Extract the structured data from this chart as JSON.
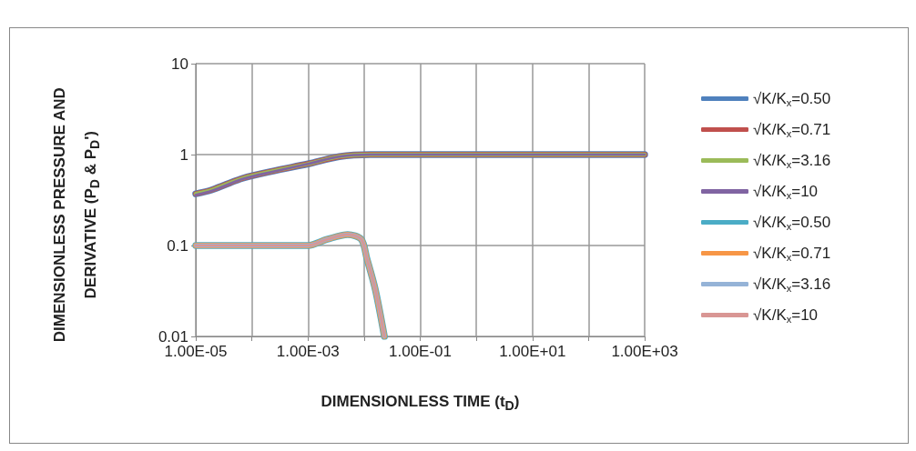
{
  "chart_data": {
    "type": "line",
    "xlabel": "DIMENSIONLESS TIME (t$_{D}$)",
    "ylabel": "DIMENSIONLESS PRESSURE AND DERIVATIVE (P$_{D}$ & P$_{D}$')",
    "log": "xy",
    "grid": true,
    "legend": "right",
    "marker": "none",
    "line_style": "solid",
    "xlim": [
      1e-05,
      1000
    ],
    "xticks": [
      {
        "value": 1e-05,
        "label": "1.00E-05"
      },
      {
        "value": 0.0001,
        "label": null
      },
      {
        "value": 0.001,
        "label": "1.00E-03"
      },
      {
        "value": 0.01,
        "label": null
      },
      {
        "value": 0.1,
        "label": "1.00E-01"
      },
      {
        "value": 1,
        "label": null
      },
      {
        "value": 10,
        "label": "1.00E+01"
      },
      {
        "value": 100,
        "label": null
      },
      {
        "value": 1000,
        "label": "1.00E+03"
      }
    ],
    "ylim": [
      0.01,
      10
    ],
    "yticks": [
      0.01,
      0.1,
      1,
      10
    ],
    "series": [
      {
        "name": "√K/K$_{x}$=0.50",
        "color": "#4f81bd",
        "x": [
          1e-05,
          1.95e-05,
          6.9e-05,
          0.00024,
          0.001,
          0.0036,
          0.013,
          1000
        ],
        "values": [
          0.37,
          0.41,
          0.55,
          0.66,
          0.79,
          0.95,
          1.0,
          1.0
        ]
      },
      {
        "name": "√K/K$_{x}$=0.71",
        "color": "#c0504d",
        "x": [
          1e-05,
          1.95e-05,
          6.9e-05,
          0.00024,
          0.001,
          0.0036,
          0.013,
          1000
        ],
        "values": [
          0.37,
          0.41,
          0.55,
          0.66,
          0.79,
          0.95,
          1.0,
          1.0
        ]
      },
      {
        "name": "√K/K$_{x}$=3.16",
        "color": "#9bbb59",
        "x": [
          1e-05,
          1.95e-05,
          6.9e-05,
          0.00024,
          0.001,
          0.0036,
          0.013,
          1000
        ],
        "values": [
          0.37,
          0.41,
          0.55,
          0.66,
          0.79,
          0.95,
          1.0,
          1.0
        ]
      },
      {
        "name": "√K/K$_{x}$=10",
        "color": "#8064a2",
        "x": [
          1e-05,
          1.95e-05,
          6.9e-05,
          0.00024,
          0.001,
          0.0036,
          0.013,
          1000
        ],
        "values": [
          0.36,
          0.4,
          0.54,
          0.65,
          0.79,
          0.95,
          1.0,
          1.0
        ]
      },
      {
        "name": "√K/K$_{x}$=0.50",
        "color": "#4bacc6",
        "x": [
          1e-05,
          0.001,
          0.0022,
          0.0051,
          0.0089,
          0.0112,
          0.0158,
          0.023
        ],
        "values": [
          0.1,
          0.1,
          0.117,
          0.132,
          0.117,
          0.072,
          0.033,
          0.01
        ]
      },
      {
        "name": "√K/K$_{x}$=0.71",
        "color": "#f79646",
        "x": [
          1e-05,
          0.001,
          0.0022,
          0.0051,
          0.0089,
          0.0112,
          0.0158,
          0.023
        ],
        "values": [
          0.1,
          0.1,
          0.117,
          0.132,
          0.117,
          0.072,
          0.033,
          0.01
        ]
      },
      {
        "name": "√K/K$_{x}$=3.16",
        "color": "#95b3d7",
        "x": [
          1e-05,
          0.001,
          0.0022,
          0.0051,
          0.0089,
          0.0112,
          0.0158,
          0.023
        ],
        "values": [
          0.1,
          0.1,
          0.117,
          0.132,
          0.117,
          0.072,
          0.033,
          0.01
        ]
      },
      {
        "name": "√K/K$_{x}$=10",
        "color": "#d99694",
        "x": [
          1e-05,
          0.001,
          0.0022,
          0.0051,
          0.0089,
          0.0112,
          0.0158,
          0.023
        ],
        "values": [
          0.1,
          0.1,
          0.117,
          0.132,
          0.117,
          0.072,
          0.033,
          0.01
        ]
      }
    ]
  }
}
